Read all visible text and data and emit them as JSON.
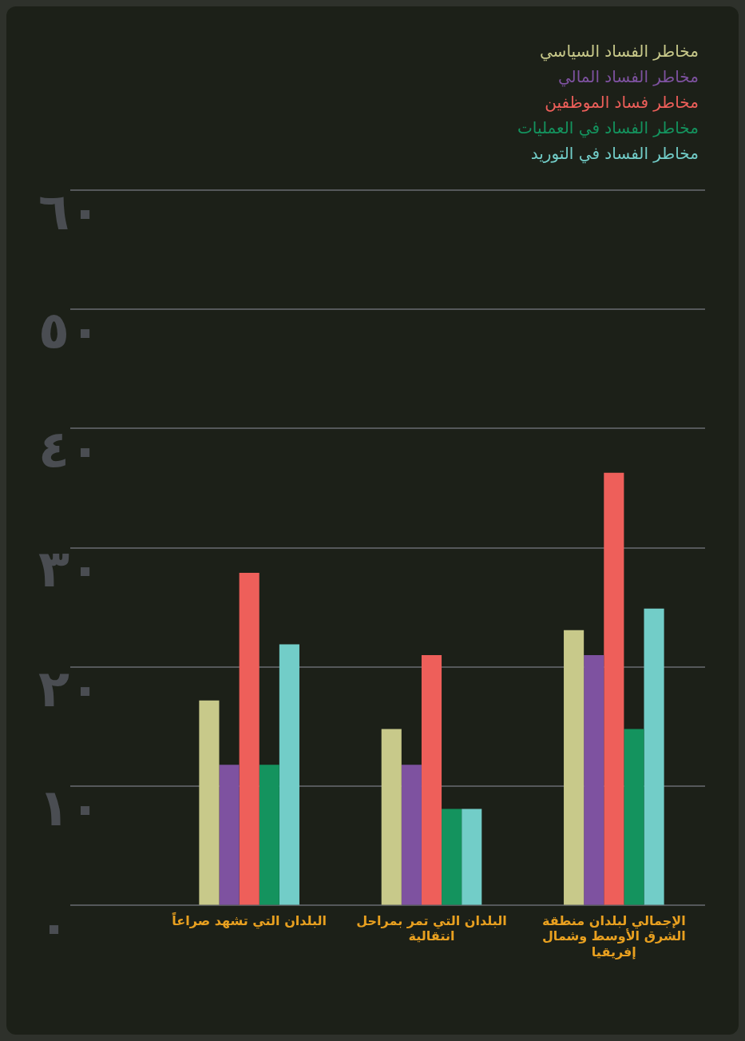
{
  "chart_data": {
    "type": "bar",
    "categories": [
      "البلدان التي تشهد صراعاً",
      "البلدان التي تمر بمراحل انتقالية",
      "الإجمالي لبلدان منطقة الشرق الأوسط وشمال إفريقيا"
    ],
    "series": [
      {
        "name": "مخاطر الفساد السياسي",
        "color": "#c8c98a",
        "values": [
          17.2,
          14.8,
          23.1
        ]
      },
      {
        "name": "مخاطر الفساد المالي",
        "color": "#7e52a0",
        "values": [
          11.8,
          11.8,
          21.0
        ]
      },
      {
        "name": "مخاطر فساد الموظفين",
        "color": "#ee5f5a",
        "values": [
          27.9,
          21.0,
          36.3
        ]
      },
      {
        "name": "مخاطر الفساد في العمليات",
        "color": "#14935e",
        "values": [
          11.8,
          8.1,
          14.8
        ]
      },
      {
        "name": "مخاطر الفساد في التوريد",
        "color": "#72cdc8",
        "values": [
          21.9,
          8.1,
          24.9
        ]
      }
    ],
    "ylim": [
      0,
      60
    ],
    "yticks": [
      {
        "value": 0,
        "label": "٠"
      },
      {
        "value": 10,
        "label": "١٠"
      },
      {
        "value": 20,
        "label": "٢٠"
      },
      {
        "value": 30,
        "label": "٣٠"
      },
      {
        "value": 40,
        "label": "٤٠"
      },
      {
        "value": 50,
        "label": "٥٠"
      },
      {
        "value": 60,
        "label": "٦٠"
      }
    ],
    "grid": "y",
    "legend": "top right"
  }
}
